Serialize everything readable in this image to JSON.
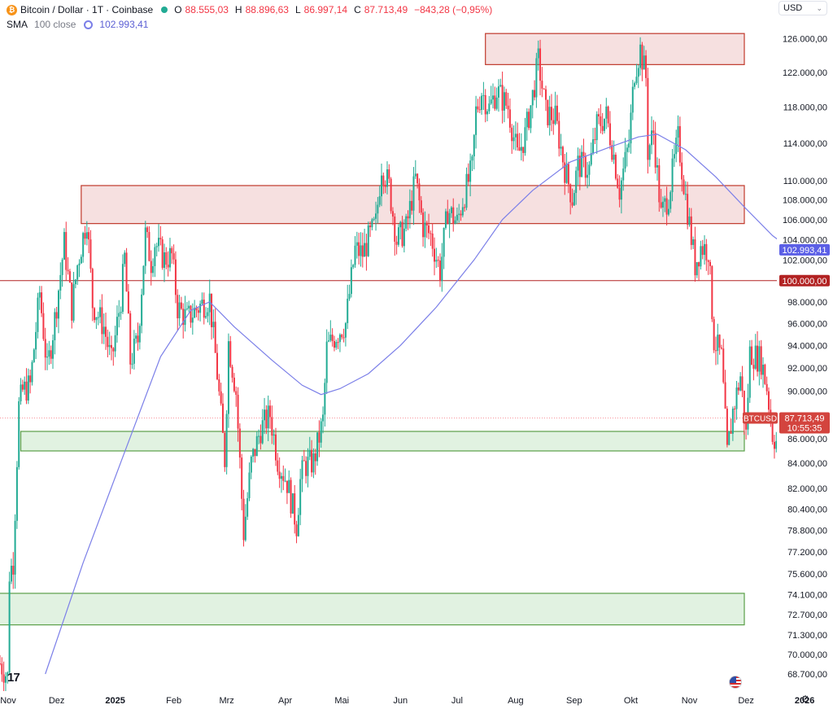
{
  "legend": {
    "symbol_icon": "bitcoin-icon",
    "title": "Bitcoin / Dollar · 1T · Coinbase",
    "open_key": "O",
    "open": "88.555,03",
    "high_key": "H",
    "high": "88.896,63",
    "low_key": "L",
    "low": "86.997,14",
    "close_key": "C",
    "close": "87.713,49",
    "change": "−843,28 (−0,95%)",
    "sma_label": "SMA",
    "sma_params": "100 close",
    "sma_value": "102.993,41"
  },
  "currency": {
    "selected": "USD"
  },
  "colors": {
    "up": "#22ab94",
    "down": "#f23645",
    "sma": "#7b7fe8",
    "resistance_zone": "#b22222",
    "support_zone": "#4caf50",
    "line_100k": "#b22222"
  },
  "chart_data": {
    "type": "candlestick",
    "title": "Bitcoin / Dollar · 1T · Coinbase",
    "y_scale": "log",
    "ylim": [
      67800,
      128500
    ],
    "y_ticks": [
      {
        "value": 126000,
        "label": "126.000,00"
      },
      {
        "value": 122000,
        "label": "122.000,00"
      },
      {
        "value": 118000,
        "label": "118.000,00"
      },
      {
        "value": 114000,
        "label": "114.000,00"
      },
      {
        "value": 110000,
        "label": "110.000,00"
      },
      {
        "value": 108000,
        "label": "108.000,00"
      },
      {
        "value": 106000,
        "label": "106.000,00"
      },
      {
        "value": 104000,
        "label": "104.000,00"
      },
      {
        "value": 102000,
        "label": "102.000,00"
      },
      {
        "value": 98000,
        "label": "98.000,00"
      },
      {
        "value": 96000,
        "label": "96.000,00"
      },
      {
        "value": 94000,
        "label": "94.000,00"
      },
      {
        "value": 92000,
        "label": "92.000,00"
      },
      {
        "value": 90000,
        "label": "90.000,00"
      },
      {
        "value": 86000,
        "label": "86.000,00"
      },
      {
        "value": 84000,
        "label": "84.000,00"
      },
      {
        "value": 82000,
        "label": "82.000,00"
      },
      {
        "value": 80400,
        "label": "80.400,00"
      },
      {
        "value": 78800,
        "label": "78.800,00"
      },
      {
        "value": 77200,
        "label": "77.200,00"
      },
      {
        "value": 75600,
        "label": "75.600,00"
      },
      {
        "value": 74100,
        "label": "74.100,00"
      },
      {
        "value": 72700,
        "label": "72.700,00"
      },
      {
        "value": 71300,
        "label": "71.300,00"
      },
      {
        "value": 70000,
        "label": "70.000,00"
      },
      {
        "value": 68700,
        "label": "68.700,00"
      }
    ],
    "x_range": [
      "2024-11-01",
      "2026-01-10"
    ],
    "x_ticks": [
      {
        "date": "2024-11-01",
        "label": "Nov"
      },
      {
        "date": "2024-12-01",
        "label": "Dez"
      },
      {
        "date": "2025-01-01",
        "label": "2025"
      },
      {
        "date": "2025-02-01",
        "label": "Feb"
      },
      {
        "date": "2025-03-01",
        "label": "Mrz"
      },
      {
        "date": "2025-04-01",
        "label": "Apr"
      },
      {
        "date": "2025-05-01",
        "label": "Mai"
      },
      {
        "date": "2025-06-01",
        "label": "Jun"
      },
      {
        "date": "2025-07-01",
        "label": "Jul"
      },
      {
        "date": "2025-08-01",
        "label": "Aug"
      },
      {
        "date": "2025-09-01",
        "label": "Sep"
      },
      {
        "date": "2025-10-01",
        "label": "Okt"
      },
      {
        "date": "2025-11-01",
        "label": "Nov"
      },
      {
        "date": "2025-12-01",
        "label": "Dez"
      },
      {
        "date": "2026-01-01",
        "label": "2026"
      }
    ],
    "price_path": [
      [
        "2024-11-01",
        69400
      ],
      [
        "2024-11-05",
        68500
      ],
      [
        "2024-11-06",
        75600
      ],
      [
        "2024-11-08",
        76500
      ],
      [
        "2024-11-11",
        88700
      ],
      [
        "2024-11-13",
        90000
      ],
      [
        "2024-11-17",
        90500
      ],
      [
        "2024-11-22",
        98900
      ],
      [
        "2024-11-26",
        91800
      ],
      [
        "2024-11-30",
        96400
      ],
      [
        "2024-12-05",
        103600
      ],
      [
        "2024-12-09",
        97400
      ],
      [
        "2024-12-12",
        101500
      ],
      [
        "2024-12-17",
        106200
      ],
      [
        "2024-12-20",
        97800
      ],
      [
        "2024-12-26",
        95700
      ],
      [
        "2024-12-30",
        92500
      ],
      [
        "2025-01-04",
        98300
      ],
      [
        "2025-01-06",
        102200
      ],
      [
        "2025-01-09",
        92600
      ],
      [
        "2025-01-13",
        94500
      ],
      [
        "2025-01-17",
        104500
      ],
      [
        "2025-01-20",
        101800
      ],
      [
        "2025-01-22",
        103700
      ],
      [
        "2025-01-27",
        102100
      ],
      [
        "2025-01-31",
        102400
      ],
      [
        "2025-02-03",
        97500
      ],
      [
        "2025-02-08",
        96400
      ],
      [
        "2025-02-14",
        97500
      ],
      [
        "2025-02-20",
        98300
      ],
      [
        "2025-02-24",
        91500
      ],
      [
        "2025-02-28",
        84300
      ],
      [
        "2025-03-02",
        94300
      ],
      [
        "2025-03-06",
        89900
      ],
      [
        "2025-03-10",
        78600
      ],
      [
        "2025-03-14",
        84000
      ],
      [
        "2025-03-19",
        86800
      ],
      [
        "2025-03-24",
        88000
      ],
      [
        "2025-03-28",
        84300
      ],
      [
        "2025-04-02",
        82500
      ],
      [
        "2025-04-07",
        79200
      ],
      [
        "2025-04-09",
        82600
      ],
      [
        "2025-04-11",
        83800
      ],
      [
        "2025-04-16",
        84100
      ],
      [
        "2025-04-21",
        87500
      ],
      [
        "2025-04-23",
        93700
      ],
      [
        "2025-04-28",
        95000
      ],
      [
        "2025-05-03",
        96000
      ],
      [
        "2025-05-08",
        103000
      ],
      [
        "2025-05-12",
        102600
      ],
      [
        "2025-05-15",
        104000
      ],
      [
        "2025-05-19",
        105600
      ],
      [
        "2025-05-22",
        111700
      ],
      [
        "2025-05-26",
        109400
      ],
      [
        "2025-05-30",
        103900
      ],
      [
        "2025-06-04",
        105100
      ],
      [
        "2025-06-09",
        110200
      ],
      [
        "2025-06-13",
        105300
      ],
      [
        "2025-06-17",
        104400
      ],
      [
        "2025-06-22",
        100900
      ],
      [
        "2025-06-26",
        107000
      ],
      [
        "2025-07-01",
        105700
      ],
      [
        "2025-07-04",
        108000
      ],
      [
        "2025-07-09",
        111300
      ],
      [
        "2025-07-11",
        117500
      ],
      [
        "2025-07-14",
        119800
      ],
      [
        "2025-07-18",
        117900
      ],
      [
        "2025-07-22",
        119900
      ],
      [
        "2025-07-28",
        118000
      ],
      [
        "2025-08-02",
        112600
      ],
      [
        "2025-08-06",
        114900
      ],
      [
        "2025-08-10",
        119300
      ],
      [
        "2025-08-13",
        123400
      ],
      [
        "2025-08-17",
        117400
      ],
      [
        "2025-08-22",
        116800
      ],
      [
        "2025-08-27",
        111300
      ],
      [
        "2025-08-31",
        108200
      ],
      [
        "2025-09-03",
        111700
      ],
      [
        "2025-09-09",
        111300
      ],
      [
        "2025-09-13",
        115900
      ],
      [
        "2025-09-18",
        117000
      ],
      [
        "2025-09-22",
        112700
      ],
      [
        "2025-09-25",
        109000
      ],
      [
        "2025-09-30",
        114100
      ],
      [
        "2025-10-03",
        122200
      ],
      [
        "2025-10-06",
        124700
      ],
      [
        "2025-10-09",
        121400
      ],
      [
        "2025-10-10",
        113200
      ],
      [
        "2025-10-13",
        115200
      ],
      [
        "2025-10-17",
        106400
      ],
      [
        "2025-10-21",
        108500
      ],
      [
        "2025-10-26",
        114500
      ],
      [
        "2025-10-30",
        108300
      ],
      [
        "2025-11-04",
        101500
      ],
      [
        "2025-11-07",
        103300
      ],
      [
        "2025-11-11",
        103000
      ],
      [
        "2025-11-14",
        94500
      ],
      [
        "2025-11-18",
        92900
      ],
      [
        "2025-11-21",
        84700
      ],
      [
        "2025-11-24",
        88300
      ],
      [
        "2025-11-28",
        91300
      ],
      [
        "2025-12-01",
        86300
      ],
      [
        "2025-12-03",
        93400
      ],
      [
        "2025-12-09",
        92700
      ],
      [
        "2025-12-12",
        90300
      ],
      [
        "2025-12-15",
        86400
      ],
      [
        "2025-12-18",
        85500
      ],
      [
        "2025-12-21",
        88600
      ],
      [
        "2025-12-25",
        87713
      ]
    ],
    "sma_path": [
      [
        "2024-11-25",
        68700
      ],
      [
        "2024-12-15",
        76400
      ],
      [
        "2025-01-05",
        84500
      ],
      [
        "2025-01-25",
        93000
      ],
      [
        "2025-02-10",
        97200
      ],
      [
        "2025-02-20",
        98000
      ],
      [
        "2025-03-05",
        95700
      ],
      [
        "2025-03-25",
        92700
      ],
      [
        "2025-04-10",
        90500
      ],
      [
        "2025-04-20",
        89700
      ],
      [
        "2025-04-30",
        90200
      ],
      [
        "2025-05-15",
        91500
      ],
      [
        "2025-06-01",
        94000
      ],
      [
        "2025-06-20",
        97500
      ],
      [
        "2025-07-10",
        102000
      ],
      [
        "2025-07-25",
        106000
      ],
      [
        "2025-08-10",
        109000
      ],
      [
        "2025-08-30",
        112000
      ],
      [
        "2025-09-20",
        113600
      ],
      [
        "2025-10-05",
        114700
      ],
      [
        "2025-10-15",
        115000
      ],
      [
        "2025-10-30",
        113300
      ],
      [
        "2025-11-15",
        110400
      ],
      [
        "2025-11-30",
        107300
      ],
      [
        "2025-12-15",
        104400
      ],
      [
        "2025-12-25",
        102993
      ]
    ],
    "zones": [
      {
        "kind": "resistance",
        "x_start": "2025-07-16",
        "x_end": "2026-01-03",
        "y_low": 122900,
        "y_high": 126600
      },
      {
        "kind": "resistance",
        "x_start": "2024-12-14",
        "x_end": "2026-01-03",
        "y_low": 105600,
        "y_high": 109500
      },
      {
        "kind": "support",
        "x_start": "2024-11-12",
        "x_end": "2026-01-03",
        "y_low": 85000,
        "y_high": 86600
      },
      {
        "kind": "support",
        "x_start": "2024-10-31",
        "x_end": "2026-01-03",
        "y_low": 72000,
        "y_high": 74200
      }
    ],
    "horizontal_lines": [
      {
        "value": 100000
      }
    ],
    "price_tags": [
      {
        "name": "sma",
        "value": 102993.41,
        "label": "102.993,41"
      },
      {
        "name": "line-100k",
        "value": 100000,
        "label": "100.000,00"
      },
      {
        "name": "last-price",
        "value": 87713.49,
        "label": "87.713,49",
        "countdown": "10:55:35",
        "symbol": "BTCUSD"
      }
    ],
    "grid": false
  },
  "icons": {
    "logo": "tradingview-logo",
    "flag": "us-flag-icon",
    "settings": "gear-icon"
  },
  "logo_text": "17"
}
